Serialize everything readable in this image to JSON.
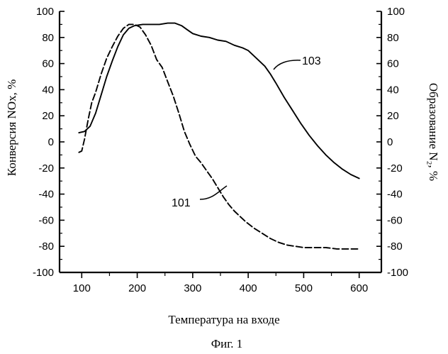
{
  "chart_data": {
    "type": "line",
    "title": "",
    "xlabel": "Температура на входе",
    "ylabel": "Конверсия NOx, %",
    "y2label": "Образование N₂, %",
    "caption": "Фиг. 1",
    "xlim": [
      60,
      640
    ],
    "ylim": [
      -100,
      100
    ],
    "y2lim": [
      -100,
      100
    ],
    "x_ticks": [
      100,
      200,
      300,
      400,
      500,
      600
    ],
    "y_ticks": [
      -100,
      -80,
      -60,
      -40,
      -20,
      0,
      20,
      40,
      60,
      80,
      100
    ],
    "y2_ticks": [
      -100,
      -80,
      -60,
      -40,
      -20,
      0,
      20,
      40,
      60,
      80,
      100
    ],
    "grid": false,
    "series": [
      {
        "name": "101",
        "dash": "dashed",
        "points": [
          [
            95,
            -8
          ],
          [
            100,
            -7
          ],
          [
            105,
            2
          ],
          [
            112,
            18
          ],
          [
            118,
            30
          ],
          [
            125,
            38
          ],
          [
            135,
            52
          ],
          [
            145,
            64
          ],
          [
            155,
            73
          ],
          [
            165,
            81
          ],
          [
            175,
            87
          ],
          [
            185,
            90
          ],
          [
            195,
            90
          ],
          [
            205,
            88
          ],
          [
            215,
            82
          ],
          [
            225,
            74
          ],
          [
            235,
            63
          ],
          [
            245,
            57
          ],
          [
            255,
            46
          ],
          [
            265,
            35
          ],
          [
            275,
            22
          ],
          [
            285,
            8
          ],
          [
            295,
            -2
          ],
          [
            305,
            -11
          ],
          [
            315,
            -16
          ],
          [
            325,
            -22
          ],
          [
            335,
            -28
          ],
          [
            345,
            -35
          ],
          [
            355,
            -42
          ],
          [
            365,
            -48
          ],
          [
            375,
            -53
          ],
          [
            385,
            -57
          ],
          [
            395,
            -61
          ],
          [
            410,
            -66
          ],
          [
            425,
            -70
          ],
          [
            440,
            -74
          ],
          [
            455,
            -77
          ],
          [
            470,
            -79
          ],
          [
            485,
            -80
          ],
          [
            500,
            -81
          ],
          [
            520,
            -81
          ],
          [
            540,
            -81
          ],
          [
            560,
            -82
          ],
          [
            580,
            -82
          ],
          [
            600,
            -82
          ]
        ]
      },
      {
        "name": "103",
        "dash": "solid",
        "points": [
          [
            95,
            7
          ],
          [
            105,
            8
          ],
          [
            115,
            12
          ],
          [
            125,
            22
          ],
          [
            135,
            36
          ],
          [
            145,
            50
          ],
          [
            155,
            62
          ],
          [
            165,
            73
          ],
          [
            175,
            82
          ],
          [
            185,
            87
          ],
          [
            195,
            89
          ],
          [
            210,
            90
          ],
          [
            225,
            90
          ],
          [
            240,
            90
          ],
          [
            255,
            91
          ],
          [
            268,
            91
          ],
          [
            280,
            89
          ],
          [
            290,
            86
          ],
          [
            300,
            83
          ],
          [
            315,
            81
          ],
          [
            330,
            80
          ],
          [
            345,
            78
          ],
          [
            360,
            77
          ],
          [
            375,
            74
          ],
          [
            390,
            72
          ],
          [
            400,
            70
          ],
          [
            410,
            66
          ],
          [
            420,
            62
          ],
          [
            430,
            58
          ],
          [
            440,
            52
          ],
          [
            450,
            45
          ],
          [
            465,
            34
          ],
          [
            480,
            24
          ],
          [
            495,
            14
          ],
          [
            510,
            5
          ],
          [
            525,
            -3
          ],
          [
            540,
            -10
          ],
          [
            555,
            -16
          ],
          [
            570,
            -21
          ],
          [
            585,
            -25
          ],
          [
            600,
            -28
          ]
        ]
      }
    ]
  }
}
